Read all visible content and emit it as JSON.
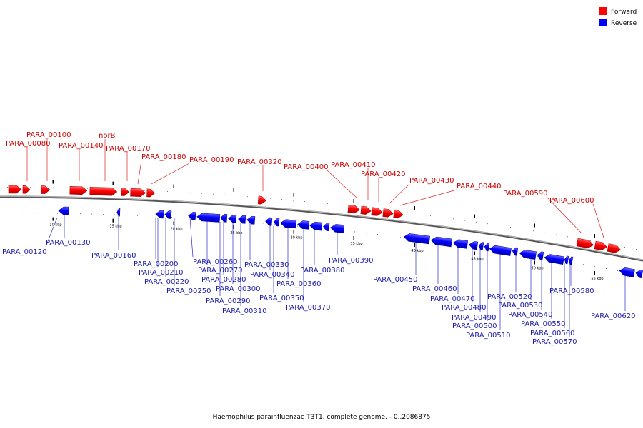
{
  "caption": "Haemophilus parainfluenzae T3T1, complete genome. - 0..2086875",
  "legend": [
    {
      "label": "Forward",
      "color": "#ff0000"
    },
    {
      "label": "Reverse",
      "color": "#0000ff"
    }
  ],
  "colors": {
    "forward": "#ff0000",
    "reverse": "#0000ff",
    "backbone": "#808080"
  },
  "kbp_labels": [
    "10 kbp",
    "15 kbp",
    "20 kbp",
    "25 kbp",
    "30 kbp",
    "35 kbp",
    "40 kbp",
    "45 kbp",
    "50 kbp",
    "55 kbp"
  ],
  "genes_forward": [
    {
      "name": "PARA_00080"
    },
    {
      "name": "PARA_00100"
    },
    {
      "name": "PARA_00140"
    },
    {
      "name": "norB"
    },
    {
      "name": "PARA_00170"
    },
    {
      "name": "PARA_00180"
    },
    {
      "name": "PARA_00190"
    },
    {
      "name": "PARA_00320"
    },
    {
      "name": "PARA_00400"
    },
    {
      "name": "PARA_00410"
    },
    {
      "name": "PARA_00420"
    },
    {
      "name": "PARA_00430"
    },
    {
      "name": "PARA_00440"
    },
    {
      "name": "PARA_00590"
    },
    {
      "name": "PARA_00600"
    }
  ],
  "genes_reverse": [
    {
      "name": "PARA_00120"
    },
    {
      "name": "PARA_00130"
    },
    {
      "name": "PARA_00160"
    },
    {
      "name": "PARA_00200"
    },
    {
      "name": "PARA_00210"
    },
    {
      "name": "PARA_00220"
    },
    {
      "name": "PARA_00250"
    },
    {
      "name": "PARA_00260"
    },
    {
      "name": "PARA_00270"
    },
    {
      "name": "PARA_00280"
    },
    {
      "name": "PARA_00290"
    },
    {
      "name": "PARA_00300"
    },
    {
      "name": "PARA_00310"
    },
    {
      "name": "PARA_00330"
    },
    {
      "name": "PARA_00340"
    },
    {
      "name": "PARA_00350"
    },
    {
      "name": "PARA_00360"
    },
    {
      "name": "PARA_00370"
    },
    {
      "name": "PARA_00380"
    },
    {
      "name": "PARA_00390"
    },
    {
      "name": "PARA_00450"
    },
    {
      "name": "PARA_00460"
    },
    {
      "name": "PARA_00470"
    },
    {
      "name": "PARA_00480"
    },
    {
      "name": "PARA_00490"
    },
    {
      "name": "PARA_00500"
    },
    {
      "name": "PARA_00510"
    },
    {
      "name": "PARA_00520"
    },
    {
      "name": "PARA_00530"
    },
    {
      "name": "PARA_00540"
    },
    {
      "name": "PARA_00550"
    },
    {
      "name": "PARA_00560"
    },
    {
      "name": "PARA_00570"
    },
    {
      "name": "PARA_00580"
    },
    {
      "name": "PARA_00620"
    }
  ]
}
